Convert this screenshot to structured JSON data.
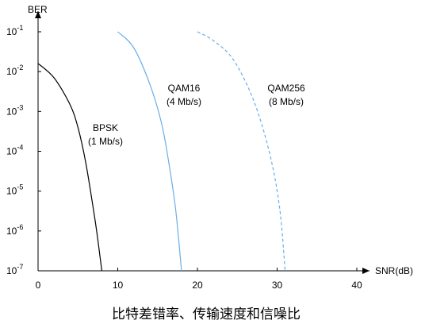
{
  "caption": "比特差错率、传输速度和信噪比",
  "chart_data": {
    "type": "line",
    "title": "",
    "xlabel": "SNR(dB)",
    "ylabel": "BER",
    "xlim": [
      0,
      40
    ],
    "ylim": [
      1e-07,
      0.1
    ],
    "yscale": "log",
    "grid": false,
    "legend": "none",
    "x_ticks": [
      "0",
      "10",
      "20",
      "30",
      "40"
    ],
    "y_ticks": [
      {
        "base": "10",
        "exp": "-1"
      },
      {
        "base": "10",
        "exp": "-2"
      },
      {
        "base": "10",
        "exp": "-3"
      },
      {
        "base": "10",
        "exp": "-4"
      },
      {
        "base": "10",
        "exp": "-5"
      },
      {
        "base": "10",
        "exp": "-6"
      },
      {
        "base": "10",
        "exp": "-7"
      }
    ],
    "series": [
      {
        "label_lines": [
          "BPSK",
          "(1 Mb/s)"
        ],
        "color": "#000000",
        "dashed": false,
        "x": [
          0,
          2,
          4,
          5,
          6,
          7,
          7.5,
          8
        ],
        "y": [
          0.016,
          0.007,
          0.0015,
          0.0004,
          5e-05,
          3e-06,
          6e-07,
          1e-07
        ]
      },
      {
        "label_lines": [
          "QAM16",
          "(4 Mb/s)"
        ],
        "color": "#6aaee8",
        "dashed": false,
        "x": [
          10,
          12,
          14,
          15.5,
          16.5,
          17.3,
          18
        ],
        "y": [
          0.1,
          0.04,
          0.005,
          0.0005,
          4e-05,
          3e-06,
          1e-07
        ]
      },
      {
        "label_lines": [
          "QAM256",
          "(8 Mb/s)"
        ],
        "color": "#6aaee8",
        "dashed": true,
        "x": [
          20,
          22,
          24.5,
          27,
          29,
          30.3,
          31
        ],
        "y": [
          0.1,
          0.06,
          0.02,
          0.002,
          0.0001,
          4e-06,
          1e-07
        ]
      }
    ]
  }
}
